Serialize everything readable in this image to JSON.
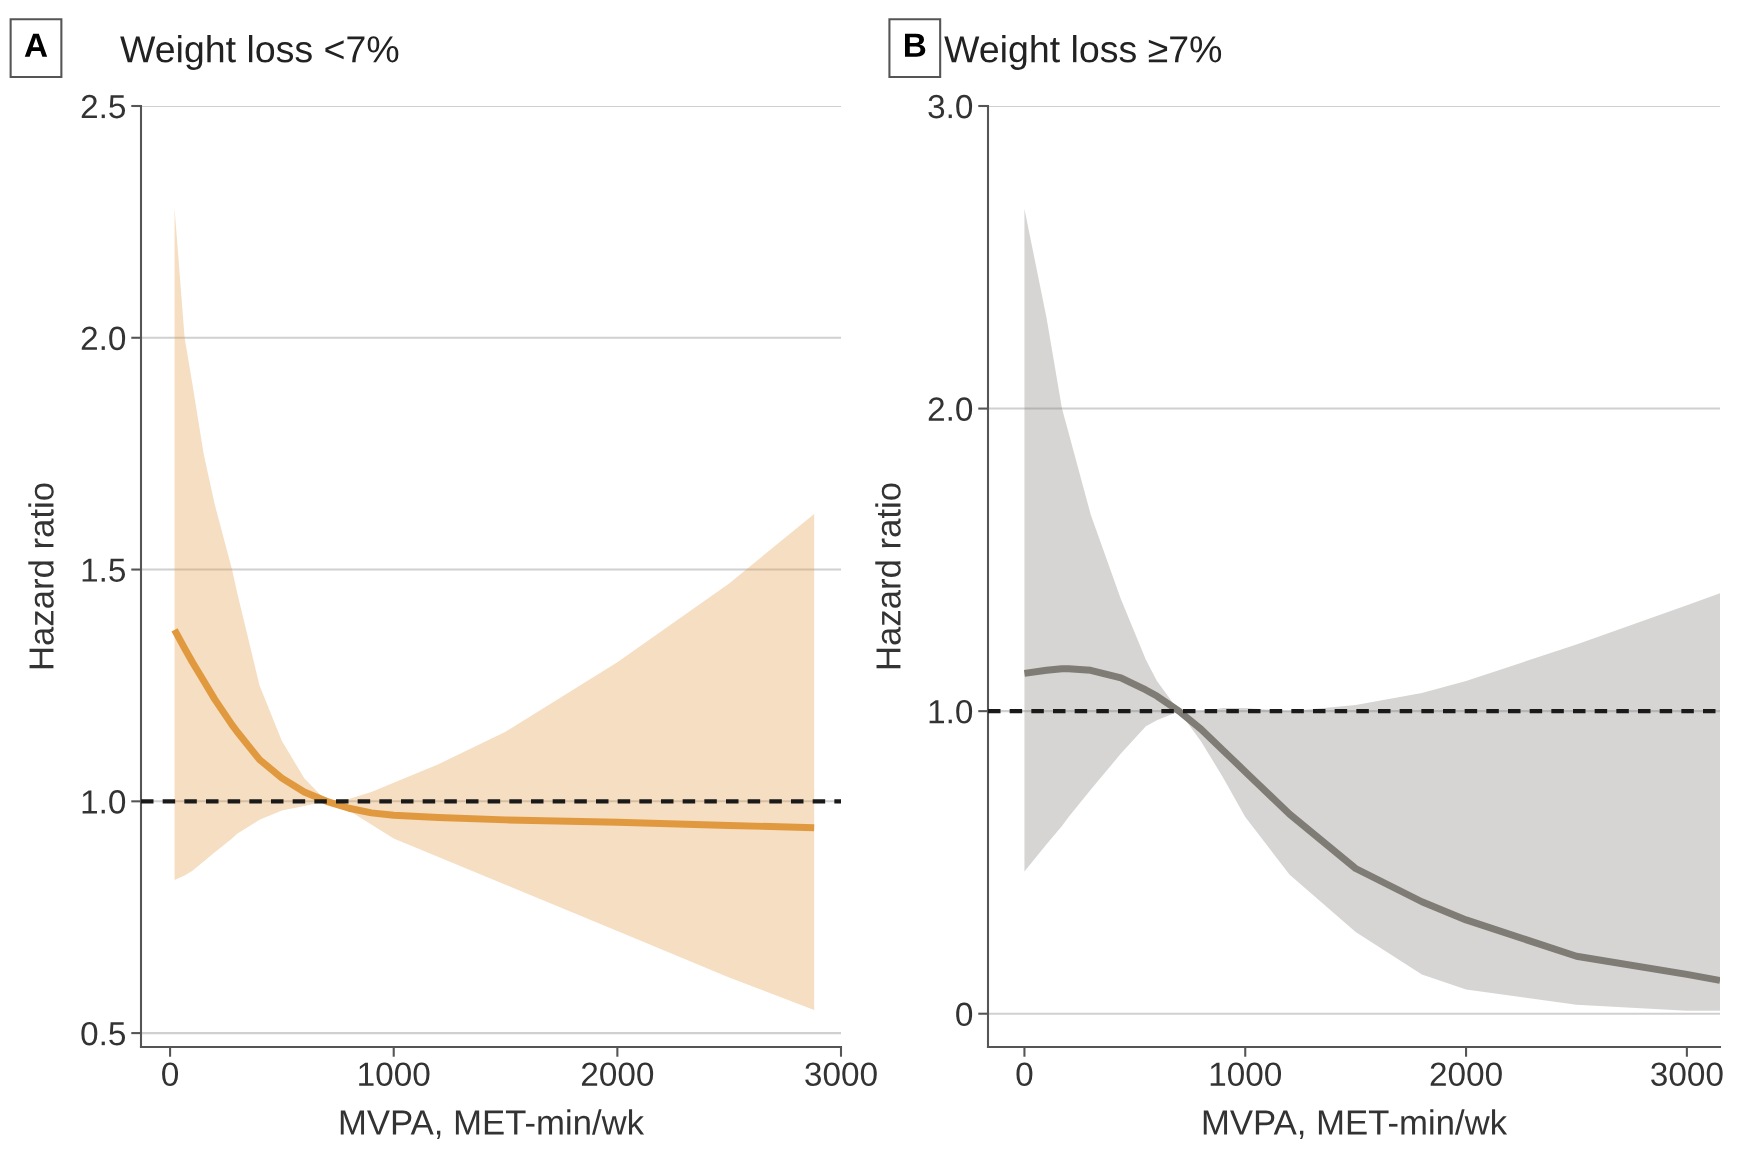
{
  "chart_data": [
    {
      "type": "line",
      "title": "Weight loss <7%",
      "annotations": [
        "A"
      ],
      "xlabel": "MVPA, MET-min/wk",
      "ylabel": "Hazard ratio",
      "xlim": [
        -130,
        3000
      ],
      "xticks": [
        0,
        1000,
        2000,
        3000
      ],
      "ylim": [
        0.47,
        2.5
      ],
      "yticks": [
        0.5,
        {
          "value": 1.0,
          "label": "1.0"
        },
        1.5,
        {
          "value": 2.0,
          "label": "2.0"
        },
        2.5
      ],
      "grid": "y",
      "series": [
        {
          "color": "#e0993f",
          "x": [
            20,
            65,
            100,
            150,
            200,
            277,
            300,
            400,
            500,
            600,
            700,
            800,
            900,
            1000,
            1200,
            1500,
            2000,
            2500,
            2880
          ],
          "values": [
            1.37,
            1.33,
            1.3,
            1.26,
            1.22,
            1.165,
            1.15,
            1.09,
            1.05,
            1.02,
            1.0,
            0.985,
            0.975,
            0.97,
            0.965,
            0.96,
            0.955,
            0.948,
            0.943
          ],
          "lower": [
            0.83,
            0.84,
            0.85,
            0.87,
            0.89,
            0.92,
            0.93,
            0.96,
            0.98,
            0.99,
            1.0,
            0.98,
            0.95,
            0.92,
            0.88,
            0.82,
            0.72,
            0.62,
            0.55
          ],
          "upper": [
            2.28,
            2.0,
            1.9,
            1.75,
            1.64,
            1.5,
            1.45,
            1.25,
            1.13,
            1.05,
            1.0,
            1.005,
            1.02,
            1.04,
            1.08,
            1.15,
            1.3,
            1.47,
            1.62
          ]
        }
      ],
      "ref_lines": [
        {
          "axis": "y",
          "value": 1.0,
          "color": "#1a1a1a",
          "line_style": "dashed"
        }
      ]
    },
    {
      "type": "line",
      "title": "Weight loss ≥7%",
      "annotations": [
        "B"
      ],
      "xlabel": "MVPA, MET-min/wk",
      "ylabel": "Hazard ratio",
      "xlim": [
        -165,
        3150
      ],
      "xticks": [
        0,
        1000,
        2000,
        3000
      ],
      "ylim": [
        -0.11,
        3.0
      ],
      "yticks": [
        0,
        {
          "value": 1.0,
          "label": "1.0"
        },
        {
          "value": 2.0,
          "label": "2.0"
        },
        {
          "value": 3.0,
          "label": "3.0"
        }
      ],
      "grid": "y",
      "series": [
        {
          "color": "#7f7b75",
          "x": [
            0,
            100,
            170,
            200,
            300,
            437,
            550,
            600,
            700,
            800,
            900,
            1000,
            1200,
            1500,
            1800,
            2000,
            2500,
            3000,
            3150
          ],
          "values": [
            1.125,
            1.135,
            1.14,
            1.14,
            1.135,
            1.11,
            1.07,
            1.05,
            1.0,
            0.94,
            0.87,
            0.8,
            0.66,
            0.48,
            0.37,
            0.31,
            0.19,
            0.13,
            0.11
          ],
          "lower": [
            0.47,
            0.56,
            0.62,
            0.65,
            0.74,
            0.86,
            0.95,
            0.97,
            1.0,
            0.9,
            0.78,
            0.65,
            0.46,
            0.27,
            0.13,
            0.08,
            0.03,
            0.01,
            0.01
          ],
          "upper": [
            2.66,
            2.3,
            2.0,
            1.92,
            1.65,
            1.37,
            1.17,
            1.1,
            1.0,
            1.0,
            1.01,
            1.01,
            1.0,
            1.02,
            1.06,
            1.1,
            1.22,
            1.35,
            1.39
          ]
        }
      ],
      "ref_lines": [
        {
          "axis": "y",
          "value": 1.0,
          "color": "#1a1a1a",
          "line_style": "dashed"
        }
      ]
    }
  ]
}
